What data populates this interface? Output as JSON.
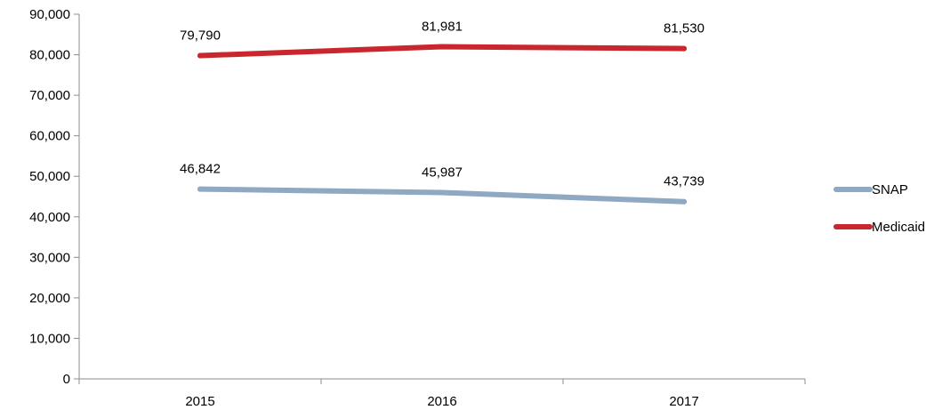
{
  "chart_data": {
    "type": "line",
    "categories": [
      "2015",
      "2016",
      "2017"
    ],
    "series": [
      {
        "name": "SNAP",
        "values": [
          46842,
          45987,
          43739
        ],
        "color": "#8fa9c2",
        "labels": [
          "46,842",
          "45,987",
          "43,739"
        ]
      },
      {
        "name": "Medicaid",
        "values": [
          79790,
          81981,
          81530
        ],
        "color": "#c8282d",
        "labels": [
          "79,790",
          "81,981",
          "81,530"
        ]
      }
    ],
    "ylim": [
      0,
      90000
    ],
    "yticks": [
      0,
      10000,
      20000,
      30000,
      40000,
      50000,
      60000,
      70000,
      80000,
      90000
    ],
    "ytick_labels": [
      "0",
      "10,000",
      "20,000",
      "30,000",
      "40,000",
      "50,000",
      "60,000",
      "70,000",
      "80,000",
      "90,000"
    ],
    "legend_position": "right",
    "grid": false
  }
}
